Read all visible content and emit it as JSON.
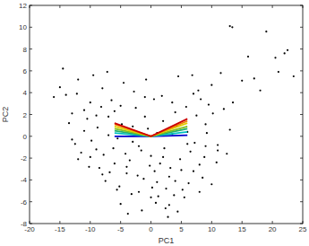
{
  "chart_data": {
    "type": "scatter",
    "x_label": "PC1",
    "y_label": "PC2",
    "xlim": [
      -20,
      25
    ],
    "ylim": [
      -8,
      12
    ],
    "xticks": [
      -20,
      -15,
      -10,
      -5,
      0,
      5,
      10,
      15,
      20,
      25
    ],
    "yticks": [
      -8,
      -6,
      -4,
      -2,
      0,
      2,
      4,
      6,
      8,
      10,
      12
    ],
    "series": [
      {
        "type": "scatter",
        "color": "#000000",
        "marker": "dot",
        "x": [
          -15,
          -14,
          -13,
          -12,
          -11,
          -10,
          -9,
          -8,
          -7,
          -6,
          -5,
          -4,
          -3,
          -2,
          -1,
          0,
          1,
          2,
          3,
          4,
          5,
          6,
          7,
          8,
          9,
          10,
          11,
          12,
          -12.5,
          -10.5,
          -9.5,
          -8.5,
          -7.5,
          -6.5,
          -5.5,
          -4.5,
          -3.5,
          -2.5,
          -1.5,
          -0.5,
          0.5,
          1.5,
          2.5,
          3.5,
          4.5,
          5.5,
          6.5,
          7.5,
          8.5,
          9.5,
          -13.5,
          -11.5,
          -10.2,
          -8.8,
          -7.2,
          -6.8,
          -5.2,
          -4.8,
          -3.2,
          -2.8,
          -1.2,
          -0.8,
          0.2,
          0.8,
          1.8,
          2.2,
          3.2,
          3.8,
          4.2,
          4.8,
          5.8,
          6.2,
          7.2,
          7.8,
          8.8,
          9.2,
          10.2,
          10.8,
          11.5,
          13,
          -14.5,
          -12.2,
          -9.8,
          -8.2,
          -6.2,
          -4.2,
          -2.2,
          -0.2,
          1.2,
          3,
          5.2,
          7,
          9,
          11,
          13.5,
          15,
          16,
          -16,
          -3.8,
          2.8,
          13,
          13.4,
          22,
          22.5,
          20.5,
          18,
          19,
          17,
          21,
          23.5,
          -11,
          -10,
          -8,
          -7,
          -5,
          -3,
          -1,
          1,
          3.5,
          6.8,
          -2,
          0,
          2,
          4,
          6,
          8,
          -6,
          -9,
          -12,
          10,
          -4,
          -1.6,
          0.6,
          2.4,
          4.4,
          -7.8,
          -5.6,
          12.5,
          -13,
          8.2
        ],
        "values": [
          4.5,
          3.8,
          2.1,
          5.2,
          0.5,
          3.1,
          -1.2,
          4.4,
          1.8,
          -2.5,
          2.8,
          -3.4,
          0.9,
          -5.1,
          3.6,
          -1.8,
          -4.2,
          1.4,
          -6.3,
          2.2,
          -3.1,
          0.4,
          3.9,
          -2.6,
          1.1,
          4.7,
          -0.8,
          2.5,
          -0.7,
          1.6,
          5.6,
          -2.9,
          -4.1,
          3.3,
          -0.2,
          4.9,
          -2.2,
          2.6,
          -6.8,
          0.7,
          3.4,
          -2.5,
          -4.8,
          0.2,
          5.5,
          -5.6,
          -1.4,
          1.9,
          -3.8,
          2.9,
          1.2,
          -1.5,
          -2.8,
          0.8,
          5.9,
          -3.3,
          -4.6,
          1.1,
          -5.3,
          4.1,
          -3.9,
          5.2,
          -4.7,
          -6.1,
          3.7,
          -1.1,
          -2.9,
          -5.4,
          0.9,
          -2.1,
          2.7,
          -4.3,
          -0.6,
          4.2,
          -1.9,
          0.3,
          2.1,
          -2.4,
          5.8,
          0.6,
          6.2,
          3.9,
          -0.4,
          2.7,
          -1.1,
          -1.6,
          -3.6,
          -2.7,
          -5.5,
          -3.7,
          -4.9,
          -3.2,
          -0.9,
          -1.3,
          3.1,
          5.1,
          7.3,
          3.6,
          -7.1,
          -7.4,
          10.1,
          10,
          7.6,
          7.9,
          7.2,
          4.2,
          9.6,
          5.3,
          5.9,
          5.5,
          2.4,
          -1.9,
          -3.5,
          0.1,
          -6.2,
          -0.5,
          1.8,
          0.3,
          3.1,
          5.6,
          -0.9,
          -5.6,
          -1.9,
          -4.1,
          -0.7,
          -5.1,
          2.3,
          1.9,
          -2.1,
          -4.4,
          -2.8,
          -1.3,
          -3.2,
          -6.6,
          -6.9,
          -1.7,
          -4.9,
          -1.6,
          -0.3,
          3.4
        ]
      },
      {
        "type": "line",
        "color": "#0000cc",
        "x": [
          -6,
          0,
          6
        ],
        "values": [
          0.0,
          0.0,
          0.1
        ]
      },
      {
        "type": "line",
        "color": "#00bfbf",
        "x": [
          -6,
          0,
          6
        ],
        "values": [
          0.3,
          0.0,
          0.4
        ]
      },
      {
        "type": "line",
        "color": "#20b070",
        "x": [
          -6,
          0,
          6
        ],
        "values": [
          0.5,
          0.0,
          0.7
        ]
      },
      {
        "type": "line",
        "color": "#80c020",
        "x": [
          -6,
          0,
          6
        ],
        "values": [
          0.7,
          0.0,
          0.9
        ]
      },
      {
        "type": "line",
        "color": "#e0d000",
        "x": [
          -6,
          0,
          6
        ],
        "values": [
          0.9,
          0.0,
          1.2
        ]
      },
      {
        "type": "line",
        "color": "#f08000",
        "x": [
          -6,
          0,
          6
        ],
        "values": [
          1.1,
          0.0,
          1.4
        ]
      },
      {
        "type": "line",
        "color": "#cc0000",
        "x": [
          -6,
          0,
          6
        ],
        "values": [
          1.2,
          0.0,
          1.6
        ]
      }
    ]
  }
}
